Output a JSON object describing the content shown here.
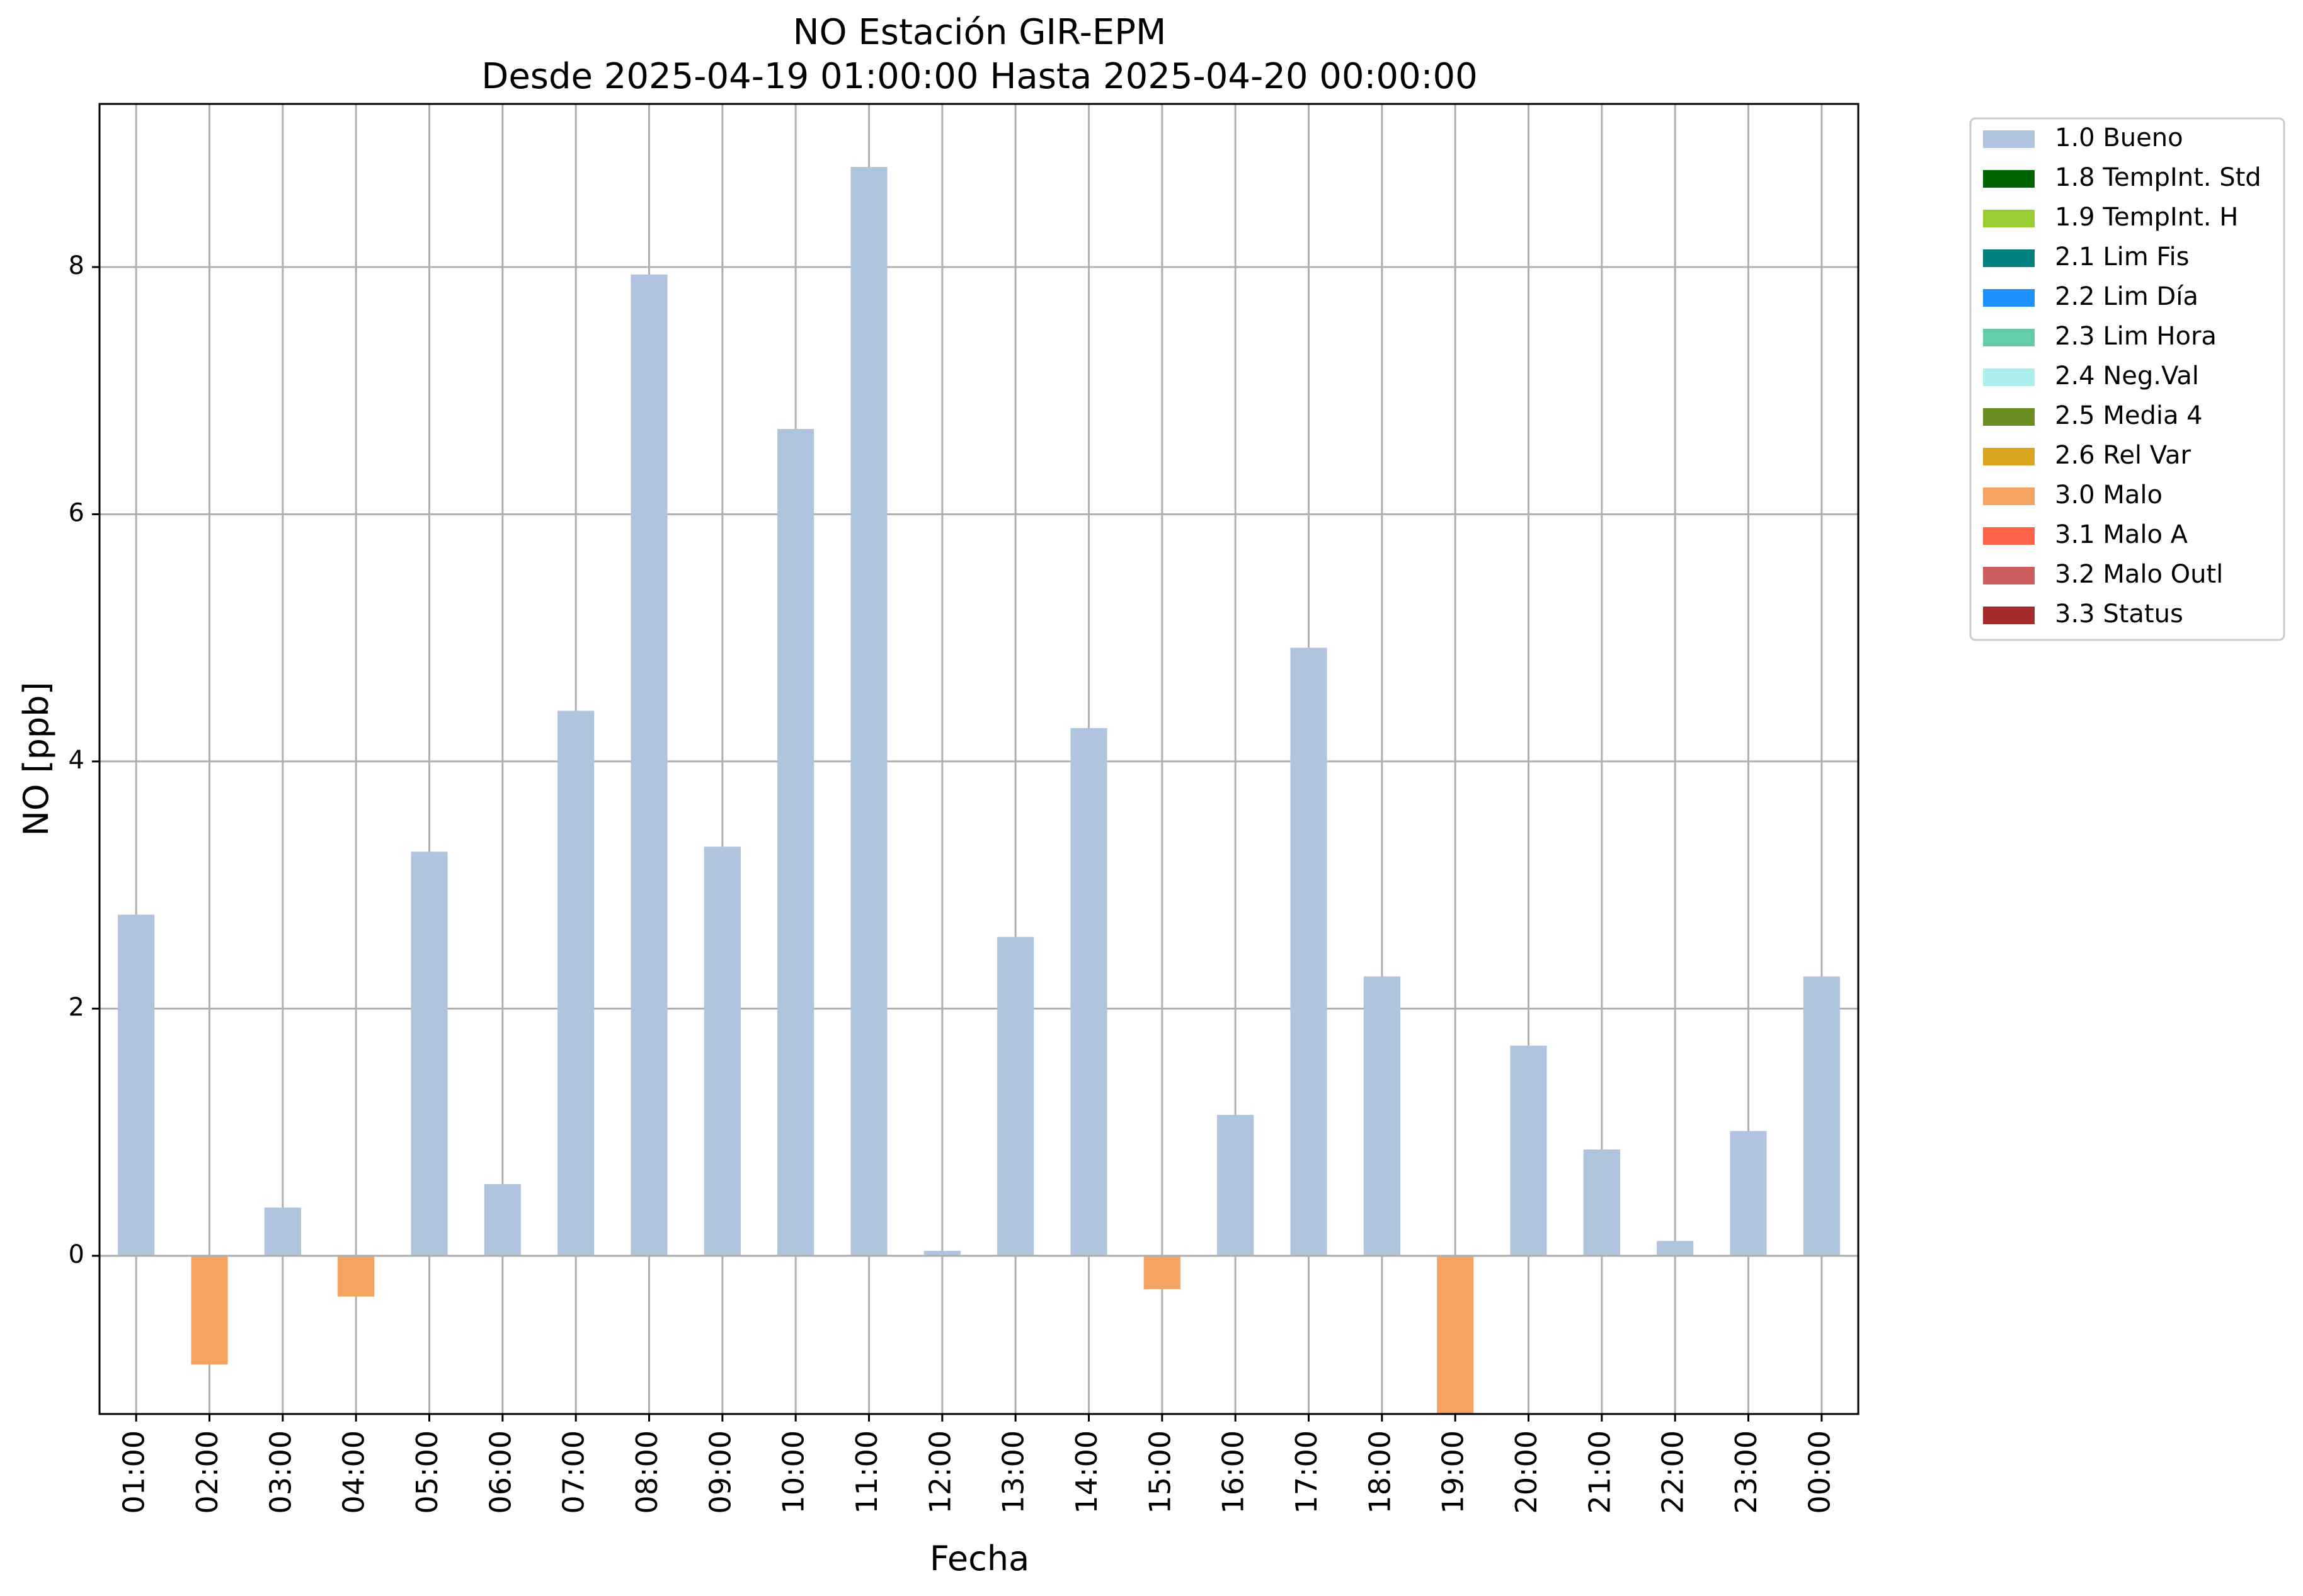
{
  "chart_data": {
    "type": "bar",
    "title": "NO Estación GIR-EPM",
    "subtitle": "Desde 2025-04-19 01:00:00 Hasta 2025-04-20 00:00:00",
    "xlabel": "Fecha",
    "ylabel": "NO [ppb]",
    "ylim": [
      -1.28,
      9.32
    ],
    "yticks": [
      0,
      2,
      4,
      6,
      8
    ],
    "grid": true,
    "legend_position": "outside-top-right",
    "categories": [
      "01:00",
      "02:00",
      "03:00",
      "04:00",
      "05:00",
      "06:00",
      "07:00",
      "08:00",
      "09:00",
      "10:00",
      "11:00",
      "12:00",
      "13:00",
      "14:00",
      "15:00",
      "16:00",
      "17:00",
      "18:00",
      "19:00",
      "20:00",
      "21:00",
      "22:00",
      "23:00",
      "00:00"
    ],
    "values": [
      2.76,
      -0.88,
      0.39,
      -0.33,
      3.27,
      0.58,
      4.41,
      7.94,
      3.31,
      6.69,
      8.81,
      0.04,
      2.58,
      4.27,
      -0.27,
      1.14,
      4.92,
      2.26,
      -1.28,
      1.7,
      0.86,
      0.12,
      1.01,
      2.26
    ],
    "flags": [
      "1.0 Bueno",
      "3.0 Malo",
      "1.0 Bueno",
      "3.0 Malo",
      "1.0 Bueno",
      "1.0 Bueno",
      "1.0 Bueno",
      "1.0 Bueno",
      "1.0 Bueno",
      "1.0 Bueno",
      "1.0 Bueno",
      "1.0 Bueno",
      "1.0 Bueno",
      "1.0 Bueno",
      "3.0 Malo",
      "1.0 Bueno",
      "1.0 Bueno",
      "1.0 Bueno",
      "3.0 Malo",
      "1.0 Bueno",
      "1.0 Bueno",
      "1.0 Bueno",
      "1.0 Bueno",
      "1.0 Bueno"
    ],
    "legend": [
      {
        "label": "1.0 Bueno",
        "color": "#b0c4de"
      },
      {
        "label": "1.8 TempInt. Std",
        "color": "#006400"
      },
      {
        "label": "1.9 TempInt. H",
        "color": "#9acd32"
      },
      {
        "label": "2.1 Lim Fis",
        "color": "#008080"
      },
      {
        "label": "2.2 Lim Día",
        "color": "#1e90ff"
      },
      {
        "label": "2.3 Lim Hora",
        "color": "#66cdaa"
      },
      {
        "label": "2.4 Neg.Val",
        "color": "#afeeee"
      },
      {
        "label": "2.5 Media 4",
        "color": "#6b8e23"
      },
      {
        "label": "2.6 Rel Var",
        "color": "#daa520"
      },
      {
        "label": "3.0 Malo",
        "color": "#f4a460"
      },
      {
        "label": "3.1 Malo A",
        "color": "#ff6347"
      },
      {
        "label": "3.2 Malo Outl",
        "color": "#cd5c5c"
      },
      {
        "label": "3.3 Status",
        "color": "#a52a2a"
      }
    ]
  }
}
